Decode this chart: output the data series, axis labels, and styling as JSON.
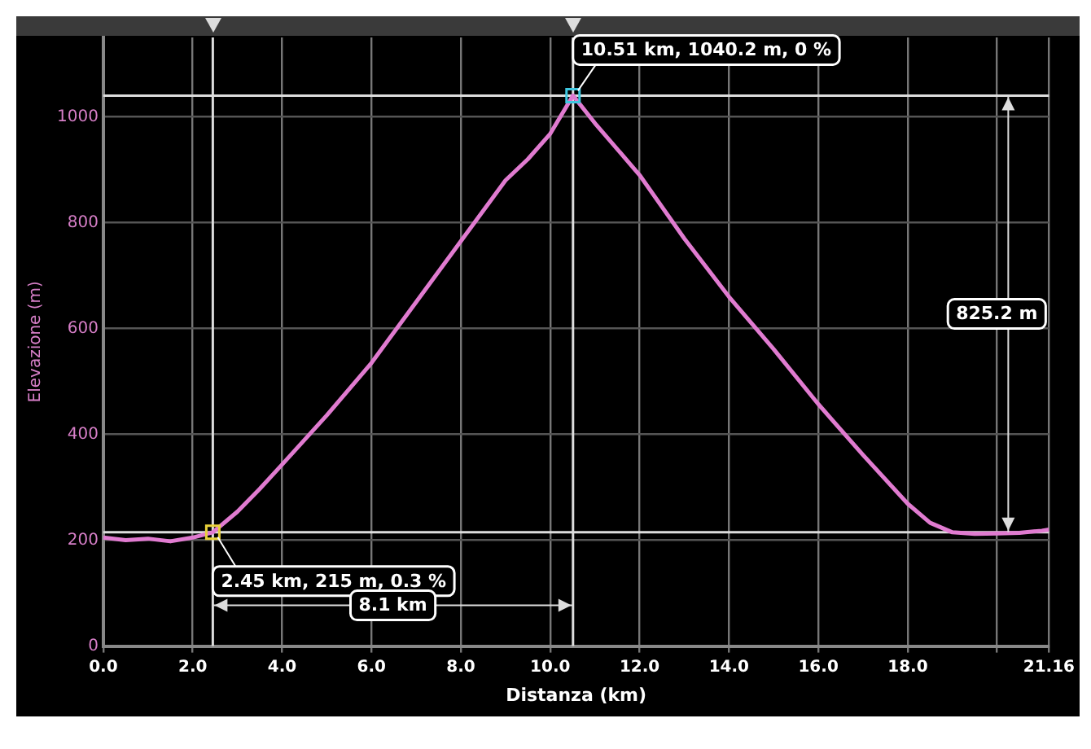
{
  "chart_data": {
    "type": "line",
    "xlabel": "Distanza (km)",
    "ylabel": "Elevazione (m)",
    "series": [
      {
        "color": "#e07bd0",
        "x": [
          0,
          0.5,
          1,
          1.5,
          2,
          2.45,
          3,
          3.5,
          4,
          5,
          6,
          7,
          8,
          9,
          9.5,
          10,
          10.51,
          11,
          12,
          13,
          14,
          15,
          16,
          17,
          18,
          18.5,
          19,
          19.5,
          20,
          20.5,
          21,
          21.16
        ],
        "values": [
          205,
          200,
          203,
          198,
          205,
          215,
          254,
          297,
          343,
          436,
          535,
          650,
          765,
          880,
          920,
          968,
          1040.2,
          988,
          890,
          770,
          660,
          561,
          457,
          361,
          269,
          233,
          215,
          212,
          213,
          214,
          218,
          220
        ]
      }
    ],
    "xlim": [
      0,
      21.16
    ],
    "xticks": [
      {
        "value": 0,
        "label": "0.0"
      },
      {
        "value": 2,
        "label": "2.0"
      },
      {
        "value": 4,
        "label": "4.0"
      },
      {
        "value": 6,
        "label": "6.0"
      },
      {
        "value": 8,
        "label": "8.0"
      },
      {
        "value": 10,
        "label": "10.0"
      },
      {
        "value": 12,
        "label": "12.0"
      },
      {
        "value": 14,
        "label": "14.0"
      },
      {
        "value": 16,
        "label": "16.0"
      },
      {
        "value": 18,
        "label": "18.0"
      },
      {
        "value": 20,
        "label": null
      },
      21.16
    ],
    "ylim": [
      0,
      1150
    ],
    "yticks": [
      0,
      200,
      400,
      600,
      800,
      1000
    ],
    "grid": true,
    "legend": false,
    "marker": "none",
    "line_style": "solid",
    "ref_lines": [
      {
        "axis": "x",
        "value": 2.45,
        "color": "#dddddd"
      },
      {
        "axis": "x",
        "value": 10.51,
        "color": "#dddddd"
      },
      {
        "axis": "y",
        "value": 215,
        "color": "#dddddd"
      },
      {
        "axis": "y",
        "value": 1040.2,
        "color": "#dddddd"
      }
    ],
    "annotations": [
      {
        "text": "2.45 km, 215 m, 0.3 %",
        "x": 2.45,
        "y": 215
      },
      {
        "text": "10.51 km, 1040.2 m, 0 %",
        "x": 10.51,
        "y": 1040.2
      },
      "8.1 km",
      "825.2 m"
    ]
  }
}
